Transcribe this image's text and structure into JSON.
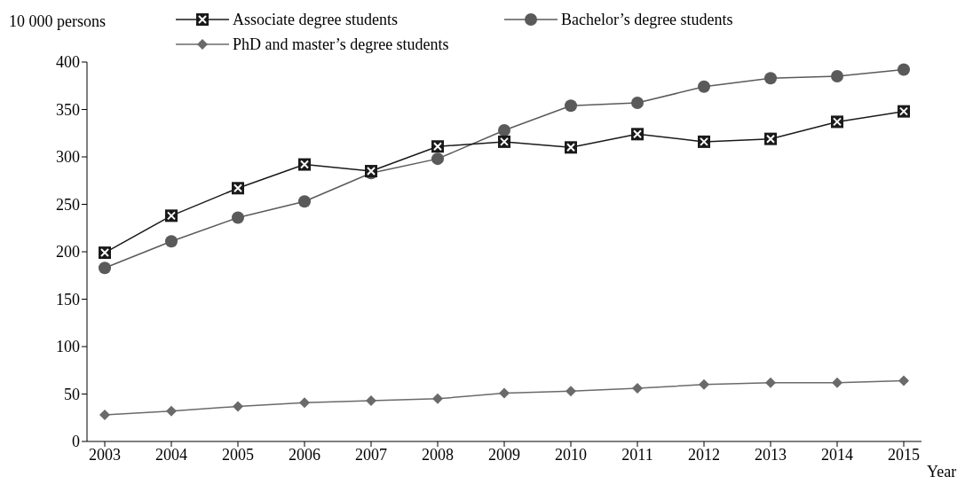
{
  "chart_data": {
    "type": "line",
    "xlabel": "Year",
    "ylabel": "10 000 persons",
    "categories": [
      "2003",
      "2004",
      "2005",
      "2006",
      "2007",
      "2008",
      "2009",
      "2010",
      "2011",
      "2012",
      "2013",
      "2014",
      "2015"
    ],
    "series": [
      {
        "name": "Associate degree students",
        "color": "#1a1a1a",
        "marker": "square",
        "values": [
          199,
          238,
          267,
          292,
          285,
          311,
          316,
          310,
          324,
          316,
          319,
          337,
          348
        ]
      },
      {
        "name": "Bachelor’s degree students",
        "color": "#5a5a5a",
        "marker": "circle",
        "values": [
          183,
          211,
          236,
          253,
          283,
          298,
          328,
          354,
          357,
          374,
          383,
          385,
          392
        ]
      },
      {
        "name": "PhD and master’s degree students",
        "color": "#6a6a6a",
        "marker": "diamond",
        "values": [
          28,
          32,
          37,
          41,
          43,
          45,
          51,
          53,
          56,
          60,
          62,
          62,
          64
        ]
      }
    ],
    "ylim": [
      0,
      400
    ],
    "yticks": [
      0,
      50,
      100,
      150,
      200,
      250,
      300,
      350,
      400
    ],
    "legend": "top",
    "line_style": "solid"
  }
}
